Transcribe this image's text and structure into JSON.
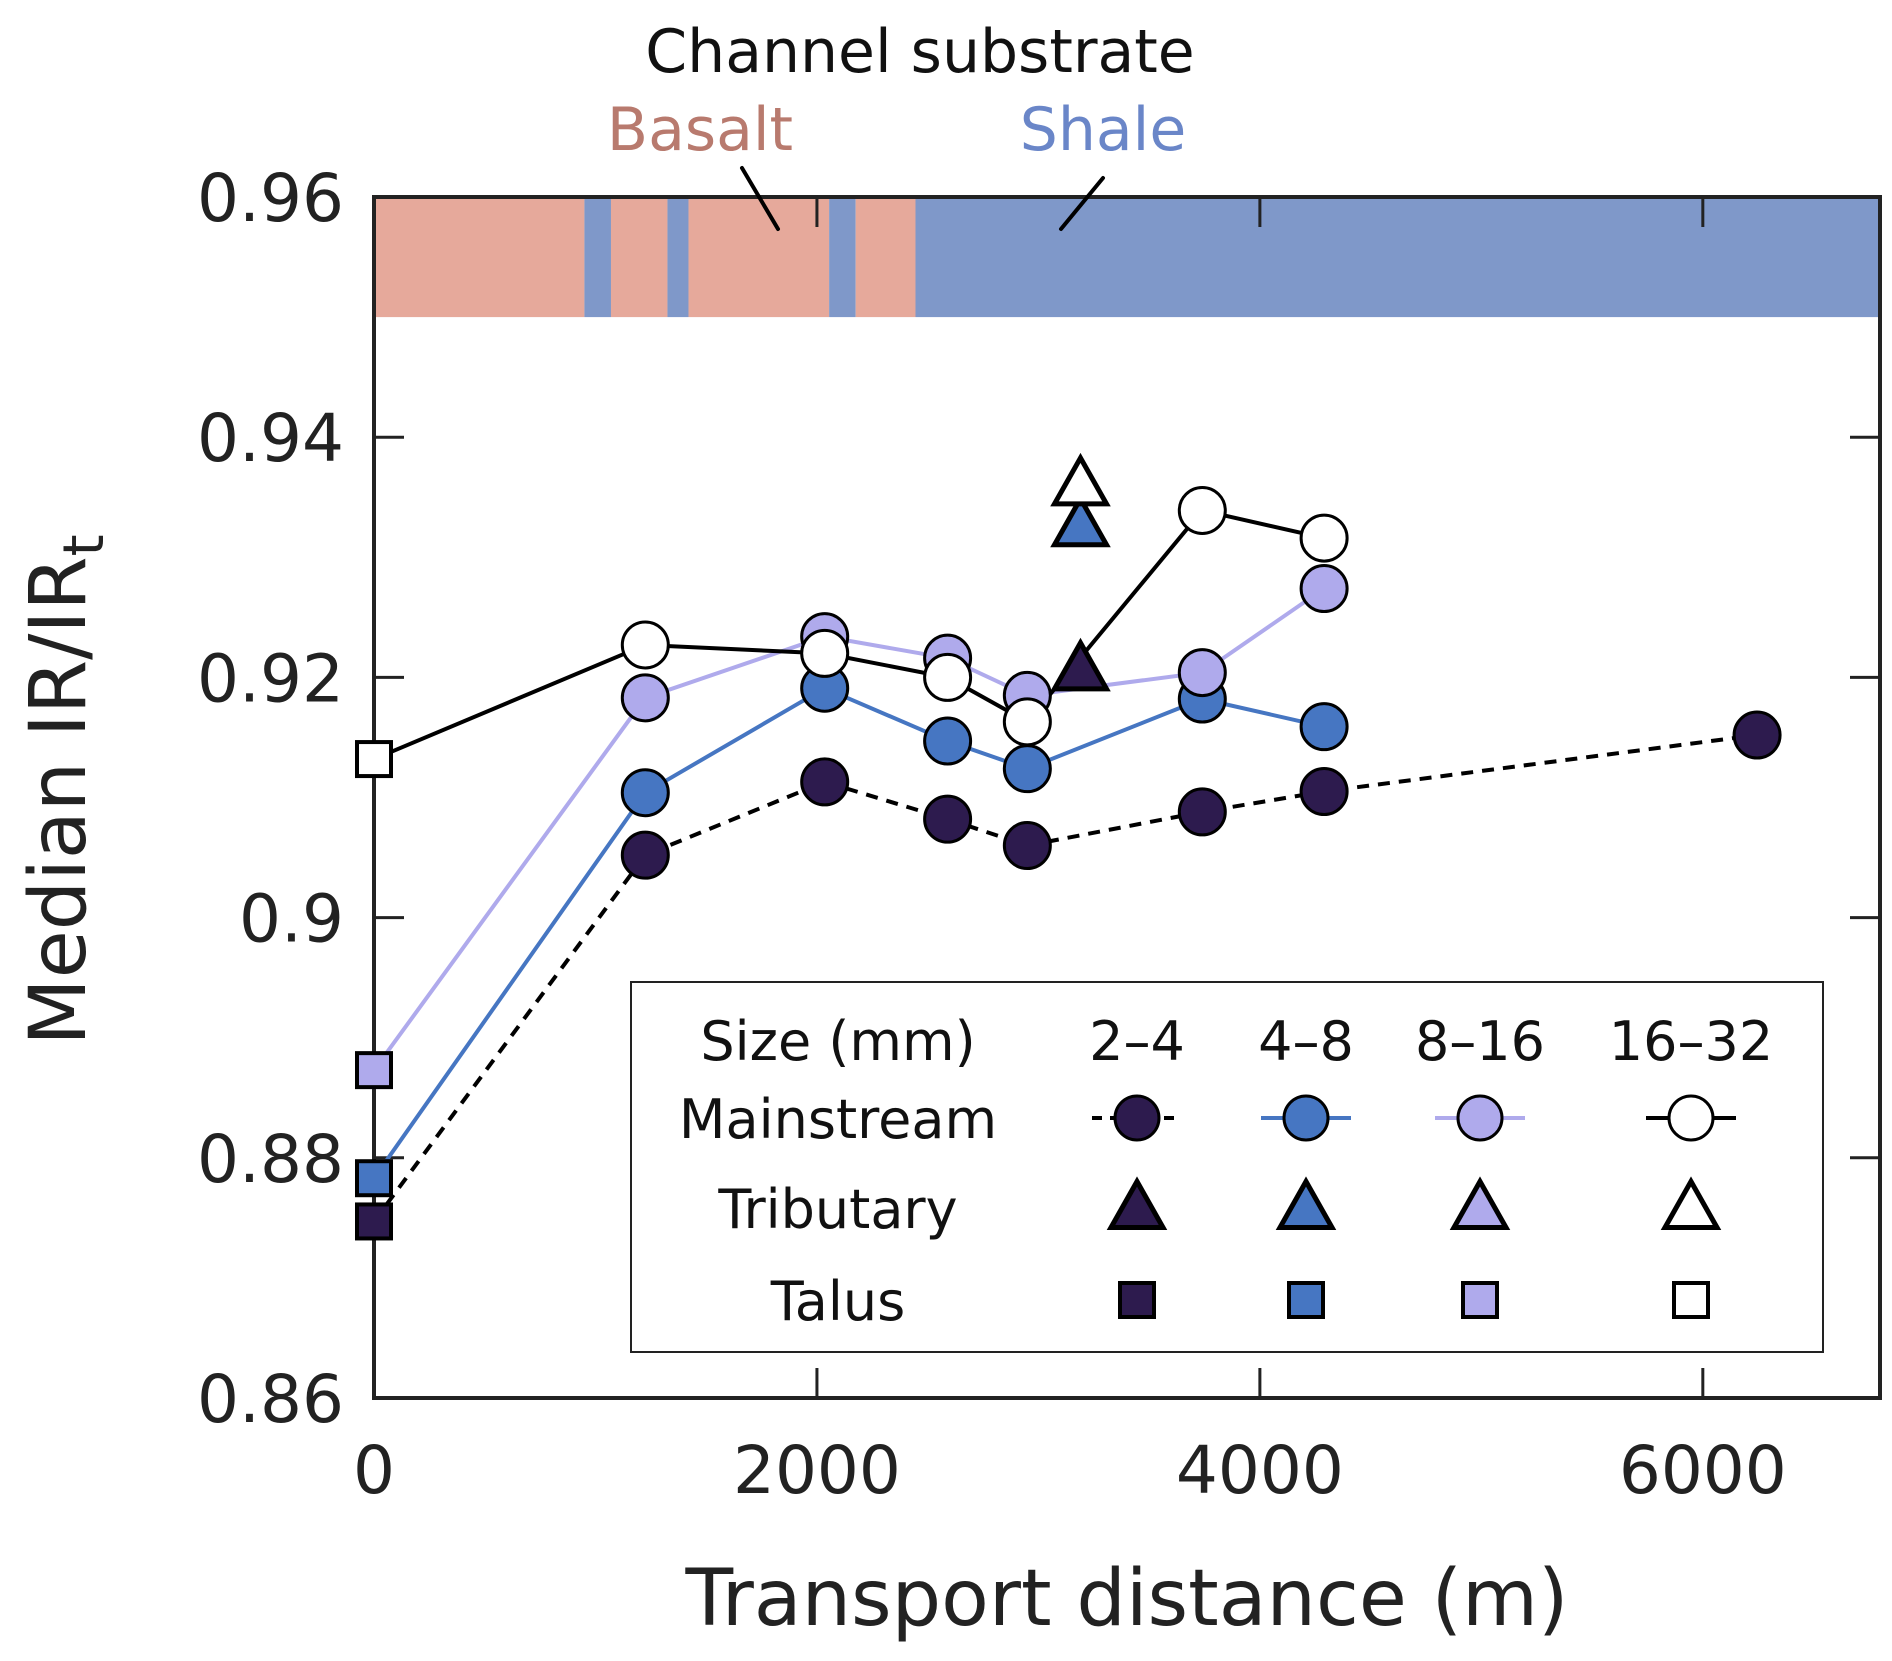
{
  "chart_data": {
    "type": "scatter",
    "title": "",
    "xlabel": "Transport distance (m)",
    "ylabel": "Median IR/IR",
    "ylabel_subscript": "t",
    "xlim": [
      0,
      6800
    ],
    "ylim": [
      0.86,
      0.96
    ],
    "xticks": [
      0,
      2000,
      4000,
      6000
    ],
    "xtick_labels": [
      "0",
      "2000",
      "4000",
      "6000"
    ],
    "yticks": [
      0.86,
      0.88,
      0.9,
      0.92,
      0.94,
      0.96
    ],
    "ytick_labels": [
      "0.86",
      "0.88",
      "0.9",
      "0.92",
      "0.94",
      "0.96"
    ],
    "grid": false,
    "substrate": {
      "header": "Channel substrate",
      "band_range": [
        0.95,
        0.96
      ],
      "labels": [
        {
          "name": "Basalt",
          "color": "#B87A6E",
          "fill": "#E6A99B"
        },
        {
          "name": "Shale",
          "color": "#6A86C8",
          "fill": "#7F98C9"
        }
      ],
      "segments": [
        {
          "type": "Basalt",
          "x0": 0,
          "x1": 950
        },
        {
          "type": "Shale",
          "x0": 950,
          "x1": 1070
        },
        {
          "type": "Basalt",
          "x0": 1070,
          "x1": 1325
        },
        {
          "type": "Shale",
          "x0": 1325,
          "x1": 1420
        },
        {
          "type": "Basalt",
          "x0": 1420,
          "x1": 2055
        },
        {
          "type": "Shale",
          "x0": 2055,
          "x1": 2175
        },
        {
          "type": "Basalt",
          "x0": 2175,
          "x1": 2445
        },
        {
          "type": "Shale",
          "x0": 2445,
          "x1": 6800
        }
      ]
    },
    "size_classes": [
      {
        "label": "2–4",
        "color": "#2D1B4E",
        "line": "#000000",
        "dash": true
      },
      {
        "label": "4–8",
        "color": "#4676C2",
        "line": "#4676C2",
        "dash": false
      },
      {
        "label": "8–16",
        "color": "#AFAAEC",
        "line": "#AFAAEC",
        "dash": false
      },
      {
        "label": "16–32",
        "color": "#FFFFFF",
        "line": "#000000",
        "dash": false
      }
    ],
    "series": [
      {
        "name": "Mainstream 2–4 mm",
        "group": "Mainstream",
        "size": 0,
        "marker": "circle",
        "x": [
          1225,
          2035,
          2590,
          2950,
          3740,
          4290,
          6245
        ],
        "y": [
          0.9052,
          0.9113,
          0.9082,
          0.906,
          0.9088,
          0.9105,
          0.9152
        ],
        "line_from_talus": true
      },
      {
        "name": "Mainstream 4–8 mm",
        "group": "Mainstream",
        "size": 1,
        "marker": "circle",
        "x": [
          1225,
          2035,
          2590,
          2950,
          3740,
          4290
        ],
        "y": [
          0.9104,
          0.9191,
          0.9147,
          0.9124,
          0.9182,
          0.9159
        ],
        "line_from_talus": true
      },
      {
        "name": "Mainstream 8–16 mm",
        "group": "Mainstream",
        "size": 2,
        "marker": "circle",
        "x": [
          1225,
          2035,
          2590,
          2950,
          3740,
          4290
        ],
        "y": [
          0.9183,
          0.9234,
          0.9216,
          0.9185,
          0.9204,
          0.9274
        ],
        "line_from_talus": true
      },
      {
        "name": "Mainstream 16–32 mm",
        "group": "Mainstream",
        "size": 3,
        "marker": "circle",
        "x": [
          1225,
          2035,
          2590,
          2950,
          3740,
          4290
        ],
        "y": [
          0.9227,
          0.922,
          0.92,
          0.9163,
          0.9339,
          0.9316
        ],
        "line_from_talus": true
      },
      {
        "name": "Tributary 2–4 mm",
        "group": "Tributary",
        "size": 0,
        "marker": "triangle",
        "x": [
          3190
        ],
        "y": [
          0.9205
        ]
      },
      {
        "name": "Tributary 4–8 mm",
        "group": "Tributary",
        "size": 1,
        "marker": "triangle",
        "x": [
          3190
        ],
        "y": [
          0.9325
        ]
      },
      {
        "name": "Tributary 16–32 mm",
        "group": "Tributary",
        "size": 3,
        "marker": "triangle",
        "x": [
          3190
        ],
        "y": [
          0.9359
        ]
      },
      {
        "name": "Talus 2–4 mm",
        "group": "Talus",
        "size": 0,
        "marker": "square",
        "x": [
          0
        ],
        "y": [
          0.8747
        ]
      },
      {
        "name": "Talus 4–8 mm",
        "group": "Talus",
        "size": 1,
        "marker": "square",
        "x": [
          0
        ],
        "y": [
          0.8783
        ]
      },
      {
        "name": "Talus 8–16 mm",
        "group": "Talus",
        "size": 2,
        "marker": "square",
        "x": [
          0
        ],
        "y": [
          0.8873
        ]
      },
      {
        "name": "Talus 16–32 mm",
        "group": "Talus",
        "size": 3,
        "marker": "square",
        "x": [
          0
        ],
        "y": [
          0.9132
        ]
      }
    ],
    "legend": {
      "placement": "lower-right",
      "header": "Size (mm)",
      "rows": [
        {
          "label": "Mainstream",
          "marker": "circle"
        },
        {
          "label": "Tributary",
          "marker": "triangle"
        },
        {
          "label": "Talus",
          "marker": "square"
        }
      ]
    }
  }
}
